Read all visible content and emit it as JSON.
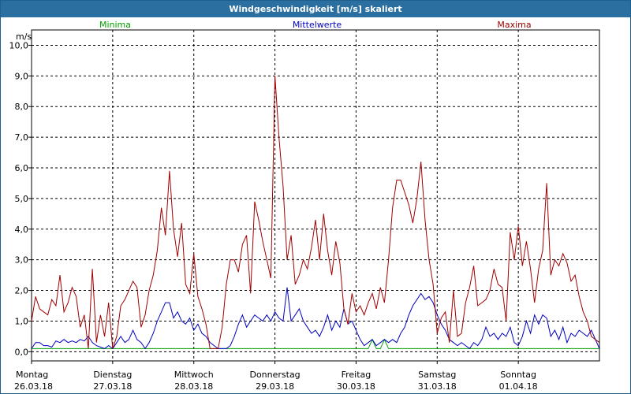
{
  "window": {
    "title": "Windgeschwindigkeit [m/s] skaliert"
  },
  "chart_data": {
    "type": "line",
    "title": "Windgeschwindigkeit [m/s] skaliert",
    "ylabel": "m/s",
    "xlabel": "",
    "ylim": [
      -0.3,
      10.5
    ],
    "xlim": [
      0,
      7
    ],
    "grid": true,
    "yticks": [
      {
        "value": 0,
        "label": "0,0"
      },
      {
        "value": 1,
        "label": "1,0"
      },
      {
        "value": 2,
        "label": "2,0"
      },
      {
        "value": 3,
        "label": "3,0"
      },
      {
        "value": 4,
        "label": "4,0"
      },
      {
        "value": 5,
        "label": "5,0"
      },
      {
        "value": 6,
        "label": "6,0"
      },
      {
        "value": 7,
        "label": "7,0"
      },
      {
        "value": 8,
        "label": "8,0"
      },
      {
        "value": 9,
        "label": "9,0"
      },
      {
        "value": 10,
        "label": "10,0"
      }
    ],
    "xticks": [
      {
        "value": 0,
        "day": "Montag",
        "date": "26.03.18"
      },
      {
        "value": 1,
        "day": "Dienstag",
        "date": "27.03.18"
      },
      {
        "value": 2,
        "day": "Mittwoch",
        "date": "28.03.18"
      },
      {
        "value": 3,
        "day": "Donnerstag",
        "date": "29.03.18"
      },
      {
        "value": 4,
        "day": "Freitag",
        "date": "30.03.18"
      },
      {
        "value": 5,
        "day": "Samstag",
        "date": "31.03.18"
      },
      {
        "value": 6,
        "day": "Sonntag",
        "date": "01.04.18"
      }
    ],
    "legend_position": "top",
    "series": [
      {
        "name": "Minima",
        "color": "#00a000",
        "points": [
          [
            0,
            0.1
          ],
          [
            4.15,
            0.1
          ],
          [
            4.2,
            0.4
          ],
          [
            4.25,
            0.1
          ],
          [
            4.3,
            0.1
          ],
          [
            4.35,
            0.4
          ],
          [
            4.4,
            0.1
          ],
          [
            7,
            0.1
          ]
        ]
      },
      {
        "name": "Mittelwerte",
        "color": "#0000c0",
        "points": [
          [
            0,
            0.1
          ],
          [
            0.05,
            0.3
          ],
          [
            0.1,
            0.3
          ],
          [
            0.15,
            0.2
          ],
          [
            0.2,
            0.2
          ],
          [
            0.25,
            0.15
          ],
          [
            0.3,
            0.35
          ],
          [
            0.35,
            0.3
          ],
          [
            0.4,
            0.4
          ],
          [
            0.45,
            0.3
          ],
          [
            0.5,
            0.35
          ],
          [
            0.55,
            0.3
          ],
          [
            0.6,
            0.4
          ],
          [
            0.65,
            0.35
          ],
          [
            0.7,
            0.5
          ],
          [
            0.75,
            0.3
          ],
          [
            0.8,
            0.2
          ],
          [
            0.85,
            0.15
          ],
          [
            0.9,
            0.1
          ],
          [
            0.95,
            0.2
          ],
          [
            1.0,
            0.1
          ],
          [
            1.05,
            0.3
          ],
          [
            1.1,
            0.5
          ],
          [
            1.15,
            0.3
          ],
          [
            1.2,
            0.4
          ],
          [
            1.25,
            0.7
          ],
          [
            1.3,
            0.4
          ],
          [
            1.35,
            0.3
          ],
          [
            1.4,
            0.1
          ],
          [
            1.45,
            0.3
          ],
          [
            1.5,
            0.6
          ],
          [
            1.55,
            1.0
          ],
          [
            1.6,
            1.3
          ],
          [
            1.65,
            1.6
          ],
          [
            1.7,
            1.6
          ],
          [
            1.75,
            1.1
          ],
          [
            1.8,
            1.3
          ],
          [
            1.85,
            1.0
          ],
          [
            1.9,
            0.9
          ],
          [
            1.95,
            1.1
          ],
          [
            2.0,
            0.7
          ],
          [
            2.05,
            0.9
          ],
          [
            2.1,
            0.6
          ],
          [
            2.15,
            0.5
          ],
          [
            2.2,
            0.3
          ],
          [
            2.25,
            0.2
          ],
          [
            2.3,
            0.1
          ],
          [
            2.35,
            0.1
          ],
          [
            2.4,
            0.1
          ],
          [
            2.45,
            0.2
          ],
          [
            2.5,
            0.5
          ],
          [
            2.55,
            0.9
          ],
          [
            2.6,
            1.2
          ],
          [
            2.65,
            0.8
          ],
          [
            2.7,
            1.0
          ],
          [
            2.75,
            1.2
          ],
          [
            2.8,
            1.1
          ],
          [
            2.85,
            1.0
          ],
          [
            2.9,
            1.2
          ],
          [
            2.95,
            1.0
          ],
          [
            3.0,
            1.3
          ],
          [
            3.05,
            1.1
          ],
          [
            3.1,
            1.0
          ],
          [
            3.15,
            2.1
          ],
          [
            3.2,
            1.0
          ],
          [
            3.25,
            1.2
          ],
          [
            3.3,
            1.4
          ],
          [
            3.35,
            1.0
          ],
          [
            3.4,
            0.8
          ],
          [
            3.45,
            0.6
          ],
          [
            3.5,
            0.7
          ],
          [
            3.55,
            0.5
          ],
          [
            3.6,
            0.8
          ],
          [
            3.65,
            1.2
          ],
          [
            3.7,
            0.7
          ],
          [
            3.75,
            1.0
          ],
          [
            3.8,
            0.8
          ],
          [
            3.85,
            1.4
          ],
          [
            3.9,
            0.9
          ],
          [
            3.95,
            1.0
          ],
          [
            4.0,
            0.7
          ],
          [
            4.05,
            0.4
          ],
          [
            4.1,
            0.2
          ],
          [
            4.15,
            0.3
          ],
          [
            4.2,
            0.4
          ],
          [
            4.25,
            0.2
          ],
          [
            4.3,
            0.3
          ],
          [
            4.35,
            0.4
          ],
          [
            4.4,
            0.3
          ],
          [
            4.45,
            0.4
          ],
          [
            4.5,
            0.3
          ],
          [
            4.55,
            0.6
          ],
          [
            4.6,
            0.8
          ],
          [
            4.65,
            1.2
          ],
          [
            4.7,
            1.5
          ],
          [
            4.75,
            1.7
          ],
          [
            4.8,
            1.9
          ],
          [
            4.85,
            1.7
          ],
          [
            4.9,
            1.8
          ],
          [
            4.95,
            1.6
          ],
          [
            5.0,
            1.2
          ],
          [
            5.05,
            0.9
          ],
          [
            5.1,
            0.7
          ],
          [
            5.15,
            0.4
          ],
          [
            5.2,
            0.3
          ],
          [
            5.25,
            0.2
          ],
          [
            5.3,
            0.3
          ],
          [
            5.35,
            0.2
          ],
          [
            5.4,
            0.1
          ],
          [
            5.45,
            0.3
          ],
          [
            5.5,
            0.2
          ],
          [
            5.55,
            0.4
          ],
          [
            5.6,
            0.8
          ],
          [
            5.65,
            0.5
          ],
          [
            5.7,
            0.6
          ],
          [
            5.75,
            0.4
          ],
          [
            5.8,
            0.6
          ],
          [
            5.85,
            0.5
          ],
          [
            5.9,
            0.8
          ],
          [
            5.95,
            0.3
          ],
          [
            6.0,
            0.2
          ],
          [
            6.05,
            0.5
          ],
          [
            6.1,
            1.0
          ],
          [
            6.15,
            0.6
          ],
          [
            6.2,
            1.2
          ],
          [
            6.25,
            0.9
          ],
          [
            6.3,
            1.2
          ],
          [
            6.35,
            1.1
          ],
          [
            6.4,
            0.5
          ],
          [
            6.45,
            0.7
          ],
          [
            6.5,
            0.4
          ],
          [
            6.55,
            0.8
          ],
          [
            6.6,
            0.3
          ],
          [
            6.65,
            0.6
          ],
          [
            6.7,
            0.5
          ],
          [
            6.75,
            0.7
          ],
          [
            6.8,
            0.6
          ],
          [
            6.85,
            0.5
          ],
          [
            6.9,
            0.7
          ],
          [
            6.95,
            0.4
          ],
          [
            7.0,
            0.1
          ]
        ]
      },
      {
        "name": "Maxima",
        "color": "#a00000",
        "points": [
          [
            0,
            1.0
          ],
          [
            0.05,
            1.8
          ],
          [
            0.1,
            1.4
          ],
          [
            0.15,
            1.3
          ],
          [
            0.2,
            1.2
          ],
          [
            0.25,
            1.7
          ],
          [
            0.3,
            1.5
          ],
          [
            0.35,
            2.5
          ],
          [
            0.4,
            1.3
          ],
          [
            0.45,
            1.6
          ],
          [
            0.5,
            2.1
          ],
          [
            0.55,
            1.8
          ],
          [
            0.6,
            0.8
          ],
          [
            0.65,
            1.2
          ],
          [
            0.7,
            0.1
          ],
          [
            0.75,
            2.7
          ],
          [
            0.8,
            0.3
          ],
          [
            0.85,
            1.2
          ],
          [
            0.9,
            0.5
          ],
          [
            0.95,
            1.6
          ],
          [
            1.0,
            0.1
          ],
          [
            1.05,
            0.5
          ],
          [
            1.1,
            1.5
          ],
          [
            1.15,
            1.7
          ],
          [
            1.2,
            2.0
          ],
          [
            1.25,
            2.3
          ],
          [
            1.3,
            2.1
          ],
          [
            1.35,
            0.8
          ],
          [
            1.4,
            1.2
          ],
          [
            1.45,
            2.0
          ],
          [
            1.5,
            2.5
          ],
          [
            1.55,
            3.3
          ],
          [
            1.6,
            4.7
          ],
          [
            1.65,
            3.8
          ],
          [
            1.7,
            5.9
          ],
          [
            1.75,
            4.0
          ],
          [
            1.8,
            3.1
          ],
          [
            1.85,
            4.2
          ],
          [
            1.9,
            2.2
          ],
          [
            1.95,
            1.9
          ],
          [
            2.0,
            3.2
          ],
          [
            2.05,
            1.8
          ],
          [
            2.1,
            1.4
          ],
          [
            2.15,
            0.9
          ],
          [
            2.2,
            0.1
          ],
          [
            2.25,
            0.1
          ],
          [
            2.3,
            0.1
          ],
          [
            2.35,
            0.8
          ],
          [
            2.4,
            2.2
          ],
          [
            2.45,
            3.0
          ],
          [
            2.5,
            3.0
          ],
          [
            2.55,
            2.6
          ],
          [
            2.6,
            3.5
          ],
          [
            2.65,
            3.8
          ],
          [
            2.7,
            1.9
          ],
          [
            2.75,
            4.9
          ],
          [
            2.8,
            4.3
          ],
          [
            2.85,
            3.6
          ],
          [
            2.9,
            3.0
          ],
          [
            2.95,
            2.4
          ],
          [
            3.0,
            9.0
          ],
          [
            3.05,
            7.0
          ],
          [
            3.1,
            5.4
          ],
          [
            3.15,
            3.0
          ],
          [
            3.2,
            3.8
          ],
          [
            3.25,
            2.2
          ],
          [
            3.3,
            2.5
          ],
          [
            3.35,
            3.0
          ],
          [
            3.4,
            2.7
          ],
          [
            3.45,
            3.4
          ],
          [
            3.5,
            4.3
          ],
          [
            3.55,
            3.0
          ],
          [
            3.6,
            4.5
          ],
          [
            3.65,
            3.3
          ],
          [
            3.7,
            2.5
          ],
          [
            3.75,
            3.6
          ],
          [
            3.8,
            2.9
          ],
          [
            3.85,
            1.4
          ],
          [
            3.9,
            0.9
          ],
          [
            3.95,
            1.9
          ],
          [
            4.0,
            1.3
          ],
          [
            4.05,
            1.5
          ],
          [
            4.1,
            1.2
          ],
          [
            4.15,
            1.6
          ],
          [
            4.2,
            1.9
          ],
          [
            4.25,
            1.4
          ],
          [
            4.3,
            2.1
          ],
          [
            4.35,
            1.6
          ],
          [
            4.4,
            3.0
          ],
          [
            4.45,
            4.7
          ],
          [
            4.5,
            5.6
          ],
          [
            4.55,
            5.6
          ],
          [
            4.6,
            5.2
          ],
          [
            4.65,
            4.8
          ],
          [
            4.7,
            4.2
          ],
          [
            4.75,
            5.0
          ],
          [
            4.8,
            6.2
          ],
          [
            4.85,
            4.3
          ],
          [
            4.9,
            3.0
          ],
          [
            4.95,
            2.2
          ],
          [
            5.0,
            0.6
          ],
          [
            5.05,
            1.1
          ],
          [
            5.1,
            1.3
          ],
          [
            5.15,
            0.3
          ],
          [
            5.2,
            2.0
          ],
          [
            5.25,
            0.5
          ],
          [
            5.3,
            0.6
          ],
          [
            5.35,
            1.6
          ],
          [
            5.4,
            2.1
          ],
          [
            5.45,
            2.8
          ],
          [
            5.5,
            1.5
          ],
          [
            5.55,
            1.6
          ],
          [
            5.6,
            1.7
          ],
          [
            5.65,
            2.0
          ],
          [
            5.7,
            2.7
          ],
          [
            5.75,
            2.2
          ],
          [
            5.8,
            2.1
          ],
          [
            5.85,
            1.0
          ],
          [
            5.9,
            3.9
          ],
          [
            5.95,
            3.0
          ],
          [
            6.0,
            4.1
          ],
          [
            6.05,
            2.8
          ],
          [
            6.1,
            3.6
          ],
          [
            6.15,
            2.7
          ],
          [
            6.2,
            1.6
          ],
          [
            6.25,
            2.7
          ],
          [
            6.3,
            3.3
          ],
          [
            6.35,
            5.5
          ],
          [
            6.4,
            2.5
          ],
          [
            6.45,
            3.0
          ],
          [
            6.5,
            2.8
          ],
          [
            6.55,
            3.2
          ],
          [
            6.6,
            2.9
          ],
          [
            6.65,
            2.3
          ],
          [
            6.7,
            2.5
          ],
          [
            6.75,
            1.8
          ],
          [
            6.8,
            1.3
          ],
          [
            6.85,
            1.0
          ],
          [
            6.9,
            0.5
          ],
          [
            7.0,
            0.3
          ]
        ]
      }
    ]
  }
}
